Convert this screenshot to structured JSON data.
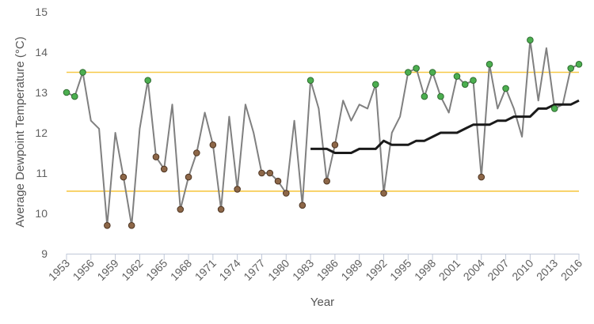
{
  "chart_data": {
    "type": "line",
    "xlabel": "Year",
    "ylabel": "Average Dewpoint Temperature (°C)",
    "ylim": [
      9,
      15
    ],
    "xlim": [
      1953,
      2016
    ],
    "y_ticks": [
      9,
      10,
      11,
      12,
      13,
      14,
      15
    ],
    "x_ticks": [
      1953,
      1956,
      1959,
      1962,
      1965,
      1968,
      1971,
      1974,
      1977,
      1980,
      1983,
      1986,
      1989,
      1992,
      1995,
      1998,
      2001,
      2004,
      2007,
      2010,
      2013,
      2016
    ],
    "grid": false,
    "reference_lines": [
      {
        "value": 13.5,
        "color": "#f7c948"
      },
      {
        "value": 10.55,
        "color": "#f7c948"
      }
    ],
    "series": [
      {
        "kind": "annual",
        "color": "#808080",
        "x": [
          1953,
          1954,
          1955,
          1956,
          1957,
          1958,
          1959,
          1960,
          1961,
          1962,
          1963,
          1964,
          1965,
          1966,
          1967,
          1968,
          1969,
          1970,
          1971,
          1972,
          1973,
          1974,
          1975,
          1976,
          1977,
          1978,
          1979,
          1980,
          1981,
          1982,
          1983,
          1984,
          1985,
          1986,
          1987,
          1988,
          1989,
          1990,
          1991,
          1992,
          1993,
          1994,
          1995,
          1996,
          1997,
          1998,
          1999,
          2000,
          2001,
          2002,
          2003,
          2004,
          2005,
          2006,
          2007,
          2008,
          2009,
          2010,
          2011,
          2012,
          2013,
          2014,
          2015,
          2016
        ],
        "values": [
          13.0,
          12.9,
          13.5,
          12.3,
          12.1,
          9.7,
          12.0,
          10.9,
          9.7,
          12.1,
          13.3,
          11.4,
          11.1,
          12.7,
          10.1,
          10.9,
          11.5,
          12.5,
          11.7,
          10.1,
          12.4,
          10.6,
          12.7,
          12.0,
          11.0,
          11.0,
          10.8,
          10.5,
          12.3,
          10.2,
          13.3,
          12.6,
          10.8,
          11.7,
          12.8,
          12.3,
          12.7,
          12.6,
          13.2,
          10.5,
          12.0,
          12.4,
          13.5,
          13.6,
          12.9,
          13.5,
          12.9,
          12.5,
          13.4,
          13.2,
          13.3,
          10.9,
          13.7,
          12.6,
          13.1,
          12.6,
          11.9,
          14.3,
          12.8,
          14.1,
          12.6,
          12.7,
          13.6,
          13.7
        ]
      },
      {
        "kind": "running-mean",
        "color": "#1a1a1a",
        "x": [
          1983,
          1984,
          1985,
          1986,
          1987,
          1988,
          1989,
          1990,
          1991,
          1992,
          1993,
          1994,
          1995,
          1996,
          1997,
          1998,
          1999,
          2000,
          2001,
          2002,
          2003,
          2004,
          2005,
          2006,
          2007,
          2008,
          2009,
          2010,
          2011,
          2012,
          2013,
          2014,
          2015,
          2016
        ],
        "values": [
          11.6,
          11.6,
          11.6,
          11.5,
          11.5,
          11.5,
          11.6,
          11.6,
          11.6,
          11.8,
          11.7,
          11.7,
          11.7,
          11.8,
          11.8,
          11.9,
          12.0,
          12.0,
          12.0,
          12.1,
          12.2,
          12.2,
          12.2,
          12.3,
          12.3,
          12.4,
          12.4,
          12.4,
          12.6,
          12.6,
          12.7,
          12.7,
          12.7,
          12.8
        ]
      }
    ],
    "markers": {
      "high": {
        "color": "#4caf50",
        "stroke": "#2e6b30",
        "years": [
          1953,
          1954,
          1955,
          1963,
          1983,
          1991,
          1995,
          1996,
          1997,
          1998,
          1999,
          2001,
          2002,
          2003,
          2005,
          2007,
          2010,
          2013,
          2015,
          2016
        ]
      },
      "low": {
        "color": "#8d6748",
        "stroke": "#4e3522",
        "years": [
          1958,
          1960,
          1961,
          1964,
          1965,
          1967,
          1968,
          1969,
          1971,
          1972,
          1974,
          1977,
          1978,
          1979,
          1980,
          1982,
          1985,
          1986,
          1992,
          2004
        ]
      }
    }
  }
}
